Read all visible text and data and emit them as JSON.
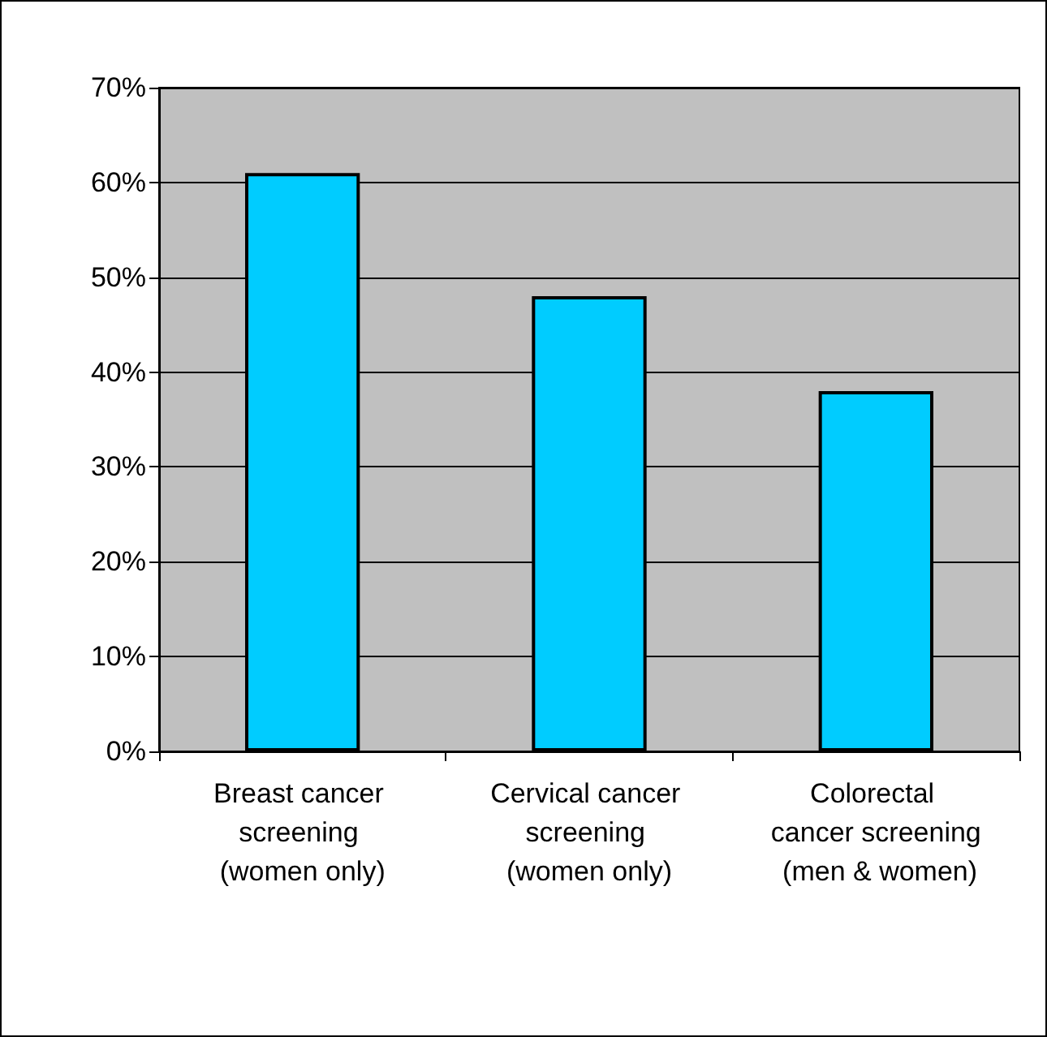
{
  "chart_data": {
    "type": "bar",
    "categories": [
      "Breast cancer screening (women only)",
      "Cervical cancer screening (women only)",
      "Colorectal cancer screening (men & women)"
    ],
    "values": [
      0.61,
      0.48,
      0.38
    ],
    "color": "#00ccff",
    "ylim": [
      0,
      0.7
    ],
    "yticks": [
      {
        "value": 0,
        "label": "0%"
      },
      {
        "value": 0.1,
        "label": "10%"
      },
      {
        "value": 0.2,
        "label": "20%"
      },
      {
        "value": 0.3,
        "label": "30%"
      },
      {
        "value": 0.4,
        "label": "40%"
      },
      {
        "value": 0.5,
        "label": "50%"
      },
      {
        "value": 0.6,
        "label": "60%"
      },
      {
        "value": 0.7,
        "label": "70%"
      }
    ],
    "grid": "y"
  }
}
